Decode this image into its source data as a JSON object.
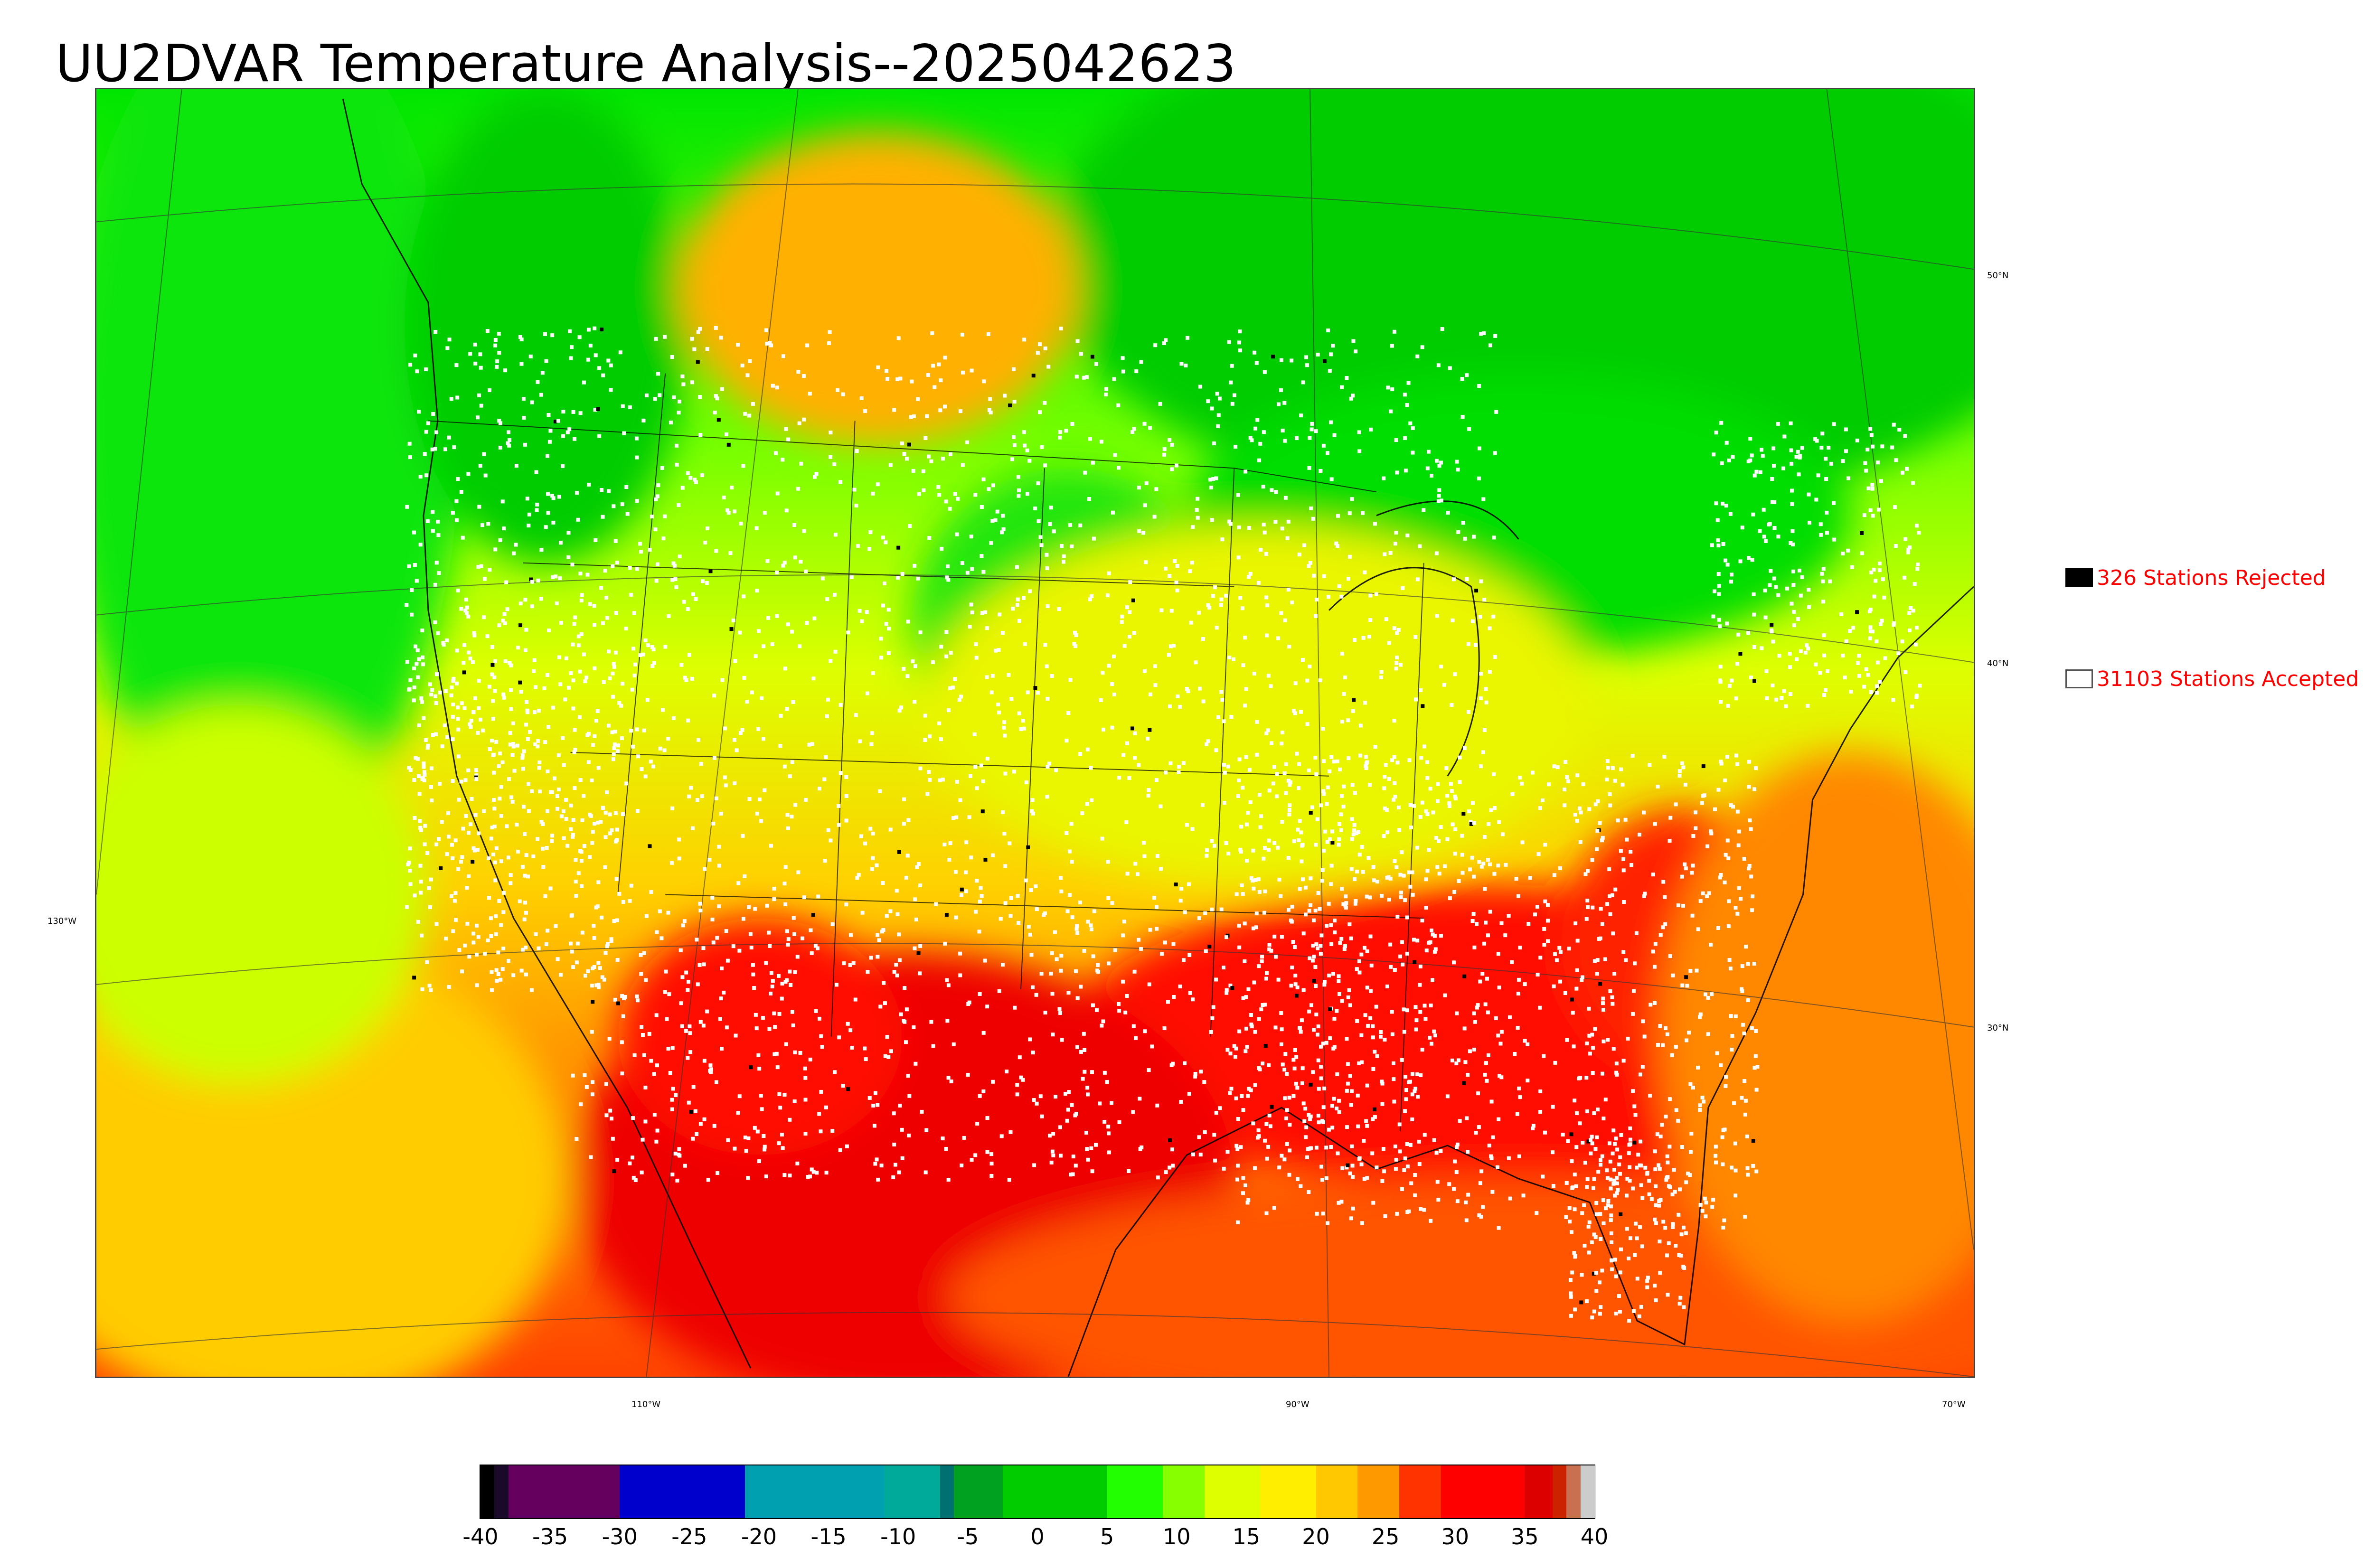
{
  "title": "UU2DVAR Temperature Analysis--2025042623",
  "legend": {
    "rejected": {
      "label": "326 Stations Rejected",
      "color": "#000000"
    },
    "accepted": {
      "label": "31103 Stations Accepted",
      "color": "#ffffff"
    }
  },
  "lat_labels": [
    "50°N",
    "40°N",
    "30°N"
  ],
  "lon_labels": [
    "130°W",
    "110°W",
    "90°W",
    "70°W"
  ],
  "colorbar": {
    "ticks": [
      "-40",
      "-35",
      "-30",
      "-25",
      "-20",
      "-15",
      "-10",
      "-5",
      "0",
      "5",
      "10",
      "15",
      "20",
      "25",
      "30",
      "35",
      "40"
    ],
    "range": [
      -40,
      40
    ],
    "segments": [
      {
        "from": -40,
        "to": -39,
        "color": "#000000"
      },
      {
        "from": -39,
        "to": -38,
        "color": "#1a0a2a"
      },
      {
        "from": -38,
        "to": -30,
        "color": "#66005e"
      },
      {
        "from": -30,
        "to": -21,
        "color": "#0000cc"
      },
      {
        "from": -21,
        "to": -11,
        "color": "#00a0b0"
      },
      {
        "from": -11,
        "to": -7,
        "color": "#00aa9a"
      },
      {
        "from": -7,
        "to": -6,
        "color": "#007070"
      },
      {
        "from": -6,
        "to": -2.5,
        "color": "#00a020"
      },
      {
        "from": -2.5,
        "to": 5,
        "color": "#00cc00"
      },
      {
        "from": 5,
        "to": 9,
        "color": "#22ff00"
      },
      {
        "from": 9,
        "to": 12,
        "color": "#88ff00"
      },
      {
        "from": 12,
        "to": 16,
        "color": "#ddff00"
      },
      {
        "from": 16,
        "to": 20,
        "color": "#ffee00"
      },
      {
        "from": 20,
        "to": 23,
        "color": "#ffc800"
      },
      {
        "from": 23,
        "to": 26,
        "color": "#ff9900"
      },
      {
        "from": 26,
        "to": 29,
        "color": "#ff3300"
      },
      {
        "from": 29,
        "to": 35,
        "color": "#ff0000"
      },
      {
        "from": 35,
        "to": 37,
        "color": "#dd0000"
      },
      {
        "from": 37,
        "to": 38,
        "color": "#cc2200"
      },
      {
        "from": 38,
        "to": 39,
        "color": "#c87050"
      },
      {
        "from": 39,
        "to": 40,
        "color": "#cccccc"
      }
    ]
  },
  "colors": {
    "cold_north": "#00dd00",
    "mid_band": "#ddff00",
    "warm_band": "#ffcc00",
    "hot_south": "#ff0000",
    "ocean_warm": "#ff6a00"
  }
}
